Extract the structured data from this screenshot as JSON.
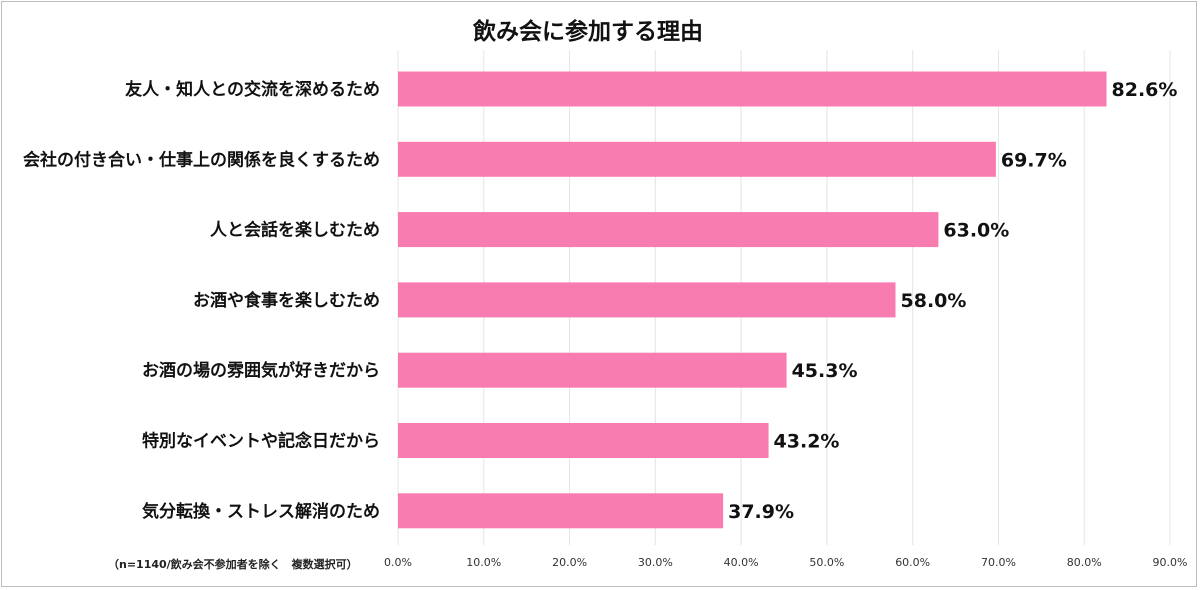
{
  "title": "飲み会に参加する理由",
  "note": "（n=1140/飲み会不参加者を除く　複数選択可）",
  "colors": {
    "bar": "#f97cb0",
    "grid": "#e4e4e4",
    "frame": "#bdbdbd"
  },
  "chart_data": {
    "type": "bar",
    "orientation": "horizontal",
    "title": "飲み会に参加する理由",
    "categories": [
      "友人・知人との交流を深めるため",
      "会社の付き合い・仕事上の関係を良くするため",
      "人と会話を楽しむため",
      "お酒や食事を楽しむため",
      "お酒の場の雰囲気が好きだから",
      "特別なイベントや記念日だから",
      "気分転換・ストレス解消のため"
    ],
    "values": [
      82.6,
      69.7,
      63.0,
      58.0,
      45.3,
      43.2,
      37.9
    ],
    "value_labels": [
      "82.6%",
      "69.7%",
      "63.0%",
      "58.0%",
      "45.3%",
      "43.2%",
      "37.9%"
    ],
    "xlim": [
      0,
      90
    ],
    "xticks": [
      "0.0%",
      "10.0%",
      "20.0%",
      "30.0%",
      "40.0%",
      "50.0%",
      "60.0%",
      "70.0%",
      "80.0%",
      "90.0%"
    ],
    "xlabel": "",
    "ylabel": "",
    "grid": true,
    "legend": "none"
  }
}
